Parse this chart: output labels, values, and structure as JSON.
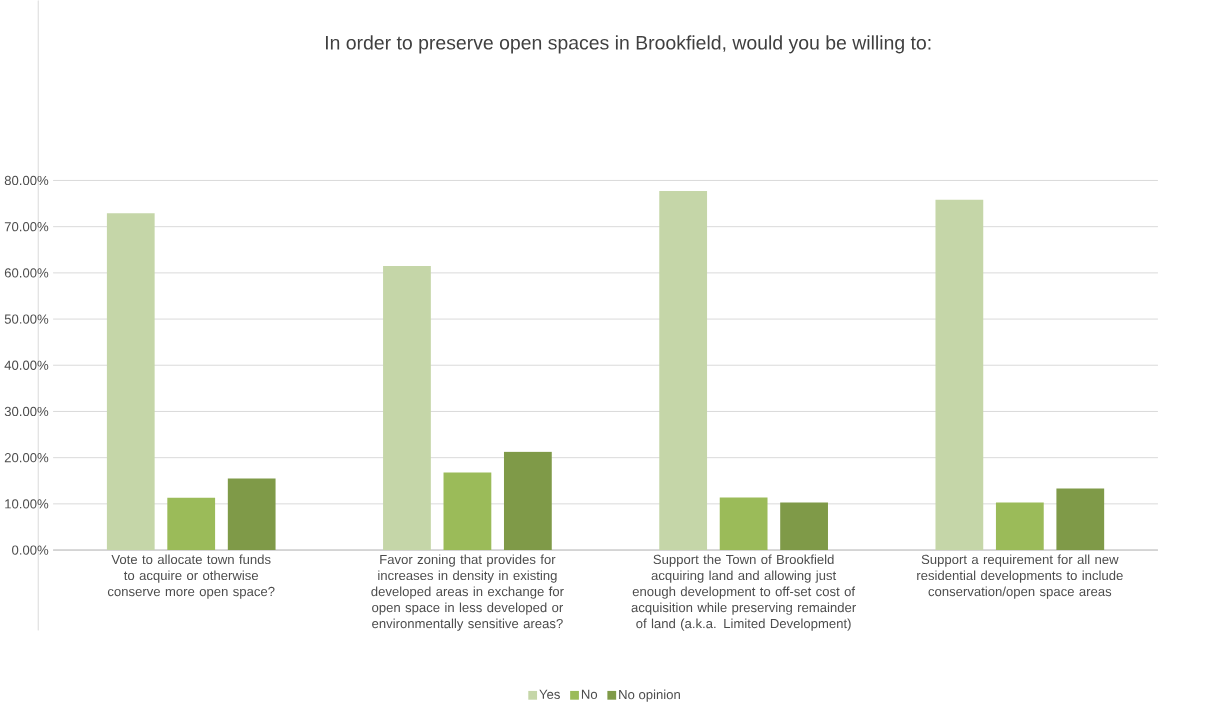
{
  "chart_data": {
    "type": "bar",
    "title": "In order to preserve open spaces in Brookfield, would you be willing to:",
    "categories": [
      "Vote to allocate town funds to acquire or otherwise conserve more open space?",
      "Favor zoning that provides for increases in density in existing developed areas in exchange for open space in less developed or environmentally sensitive areas?",
      "Support the Town of Brookfield acquiring land and allowing just enough development to off-set cost of acquisition while preserving remainder of land (a.k.a. Limited Development)",
      "Support a requirement for all new residential developments to include conservation/open space areas"
    ],
    "series": [
      {
        "name": "Yes",
        "color": "#c5d6a8",
        "values": [
          72.9,
          61.5,
          77.7,
          75.8
        ]
      },
      {
        "name": "No",
        "color": "#9bbb59",
        "values": [
          11.3,
          16.8,
          11.4,
          10.3
        ]
      },
      {
        "name": "No opinion",
        "color": "#7f9a48",
        "values": [
          15.5,
          21.3,
          10.3,
          13.3
        ]
      }
    ],
    "ylim": [
      0,
      80
    ],
    "yticks": [
      {
        "value": 0,
        "label": "0.00%"
      },
      {
        "value": 10,
        "label": "10.00%"
      },
      {
        "value": 20,
        "label": "20.00%"
      },
      {
        "value": 30,
        "label": "30.00%"
      },
      {
        "value": 40,
        "label": "40.00%"
      },
      {
        "value": 50,
        "label": "50.00%"
      },
      {
        "value": 60,
        "label": "60.00%"
      },
      {
        "value": 70,
        "label": "70.00%"
      },
      {
        "value": 80,
        "label": "80.00%"
      }
    ],
    "grid": "y",
    "legend": "bottom"
  }
}
